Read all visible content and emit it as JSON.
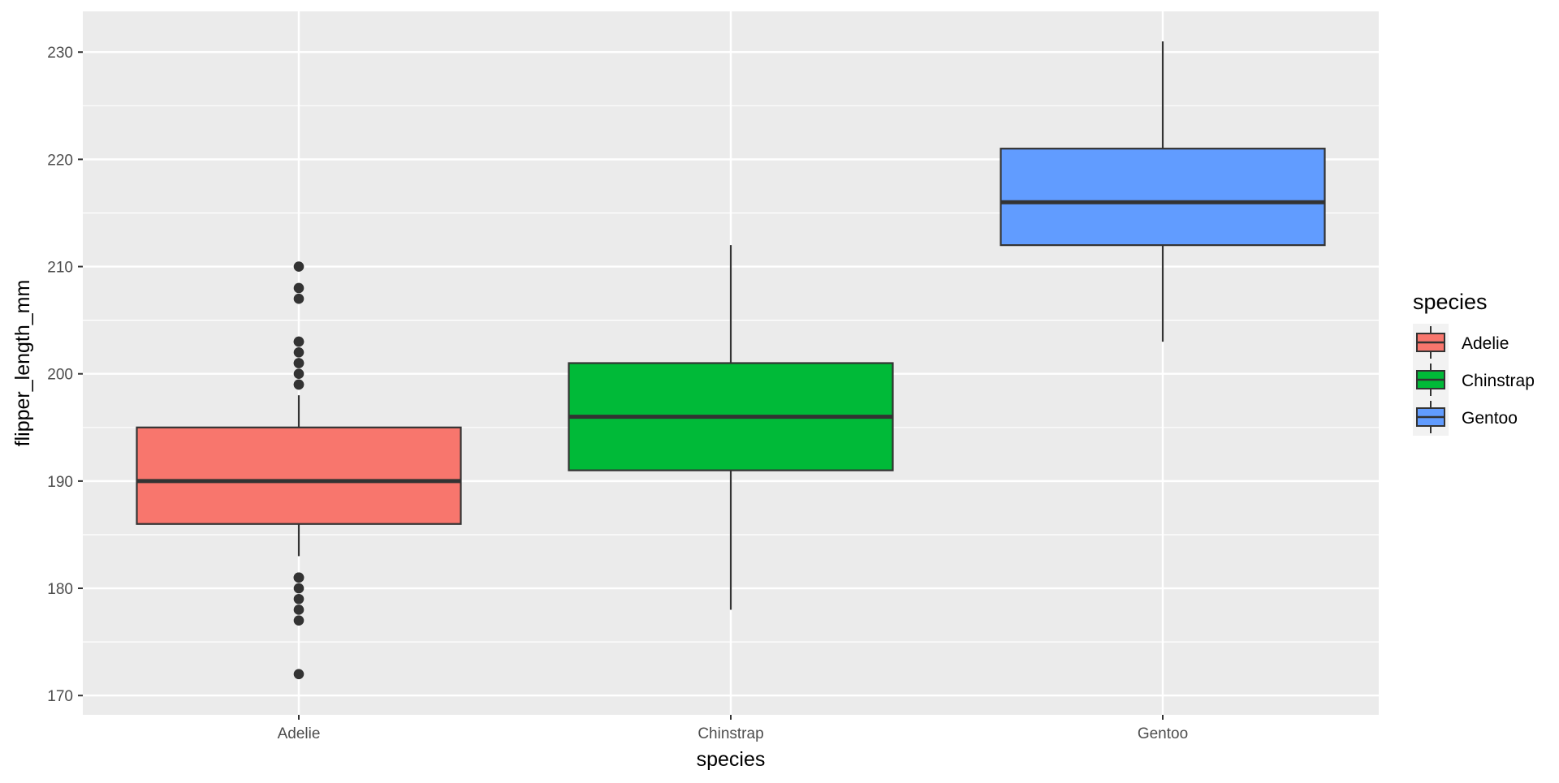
{
  "chart_data": {
    "type": "boxplot",
    "title": "",
    "xlabel": "species",
    "ylabel": "flipper_length_mm",
    "ylim": [
      168.2,
      233.8
    ],
    "yticks": [
      170,
      180,
      190,
      200,
      210,
      220,
      230
    ],
    "grid": true,
    "legend": {
      "title": "species",
      "position": "right"
    },
    "categories": [
      "Adelie",
      "Chinstrap",
      "Gentoo"
    ],
    "series": [
      {
        "name": "Adelie",
        "color": "#F8766D",
        "whisker_low": 183,
        "q1": 186,
        "median": 190,
        "q3": 195,
        "whisker_high": 198,
        "outliers": [
          172,
          177,
          178,
          179,
          180,
          181,
          181,
          181,
          199,
          199,
          200,
          201,
          201,
          202,
          203,
          203,
          207,
          208,
          210
        ]
      },
      {
        "name": "Chinstrap",
        "color": "#00BA38",
        "whisker_low": 178,
        "q1": 191,
        "median": 196,
        "q3": 201,
        "whisker_high": 212,
        "outliers": []
      },
      {
        "name": "Gentoo",
        "color": "#619CFF",
        "whisker_low": 203,
        "q1": 212,
        "median": 216,
        "q3": 221,
        "whisker_high": 231,
        "outliers": []
      }
    ]
  }
}
